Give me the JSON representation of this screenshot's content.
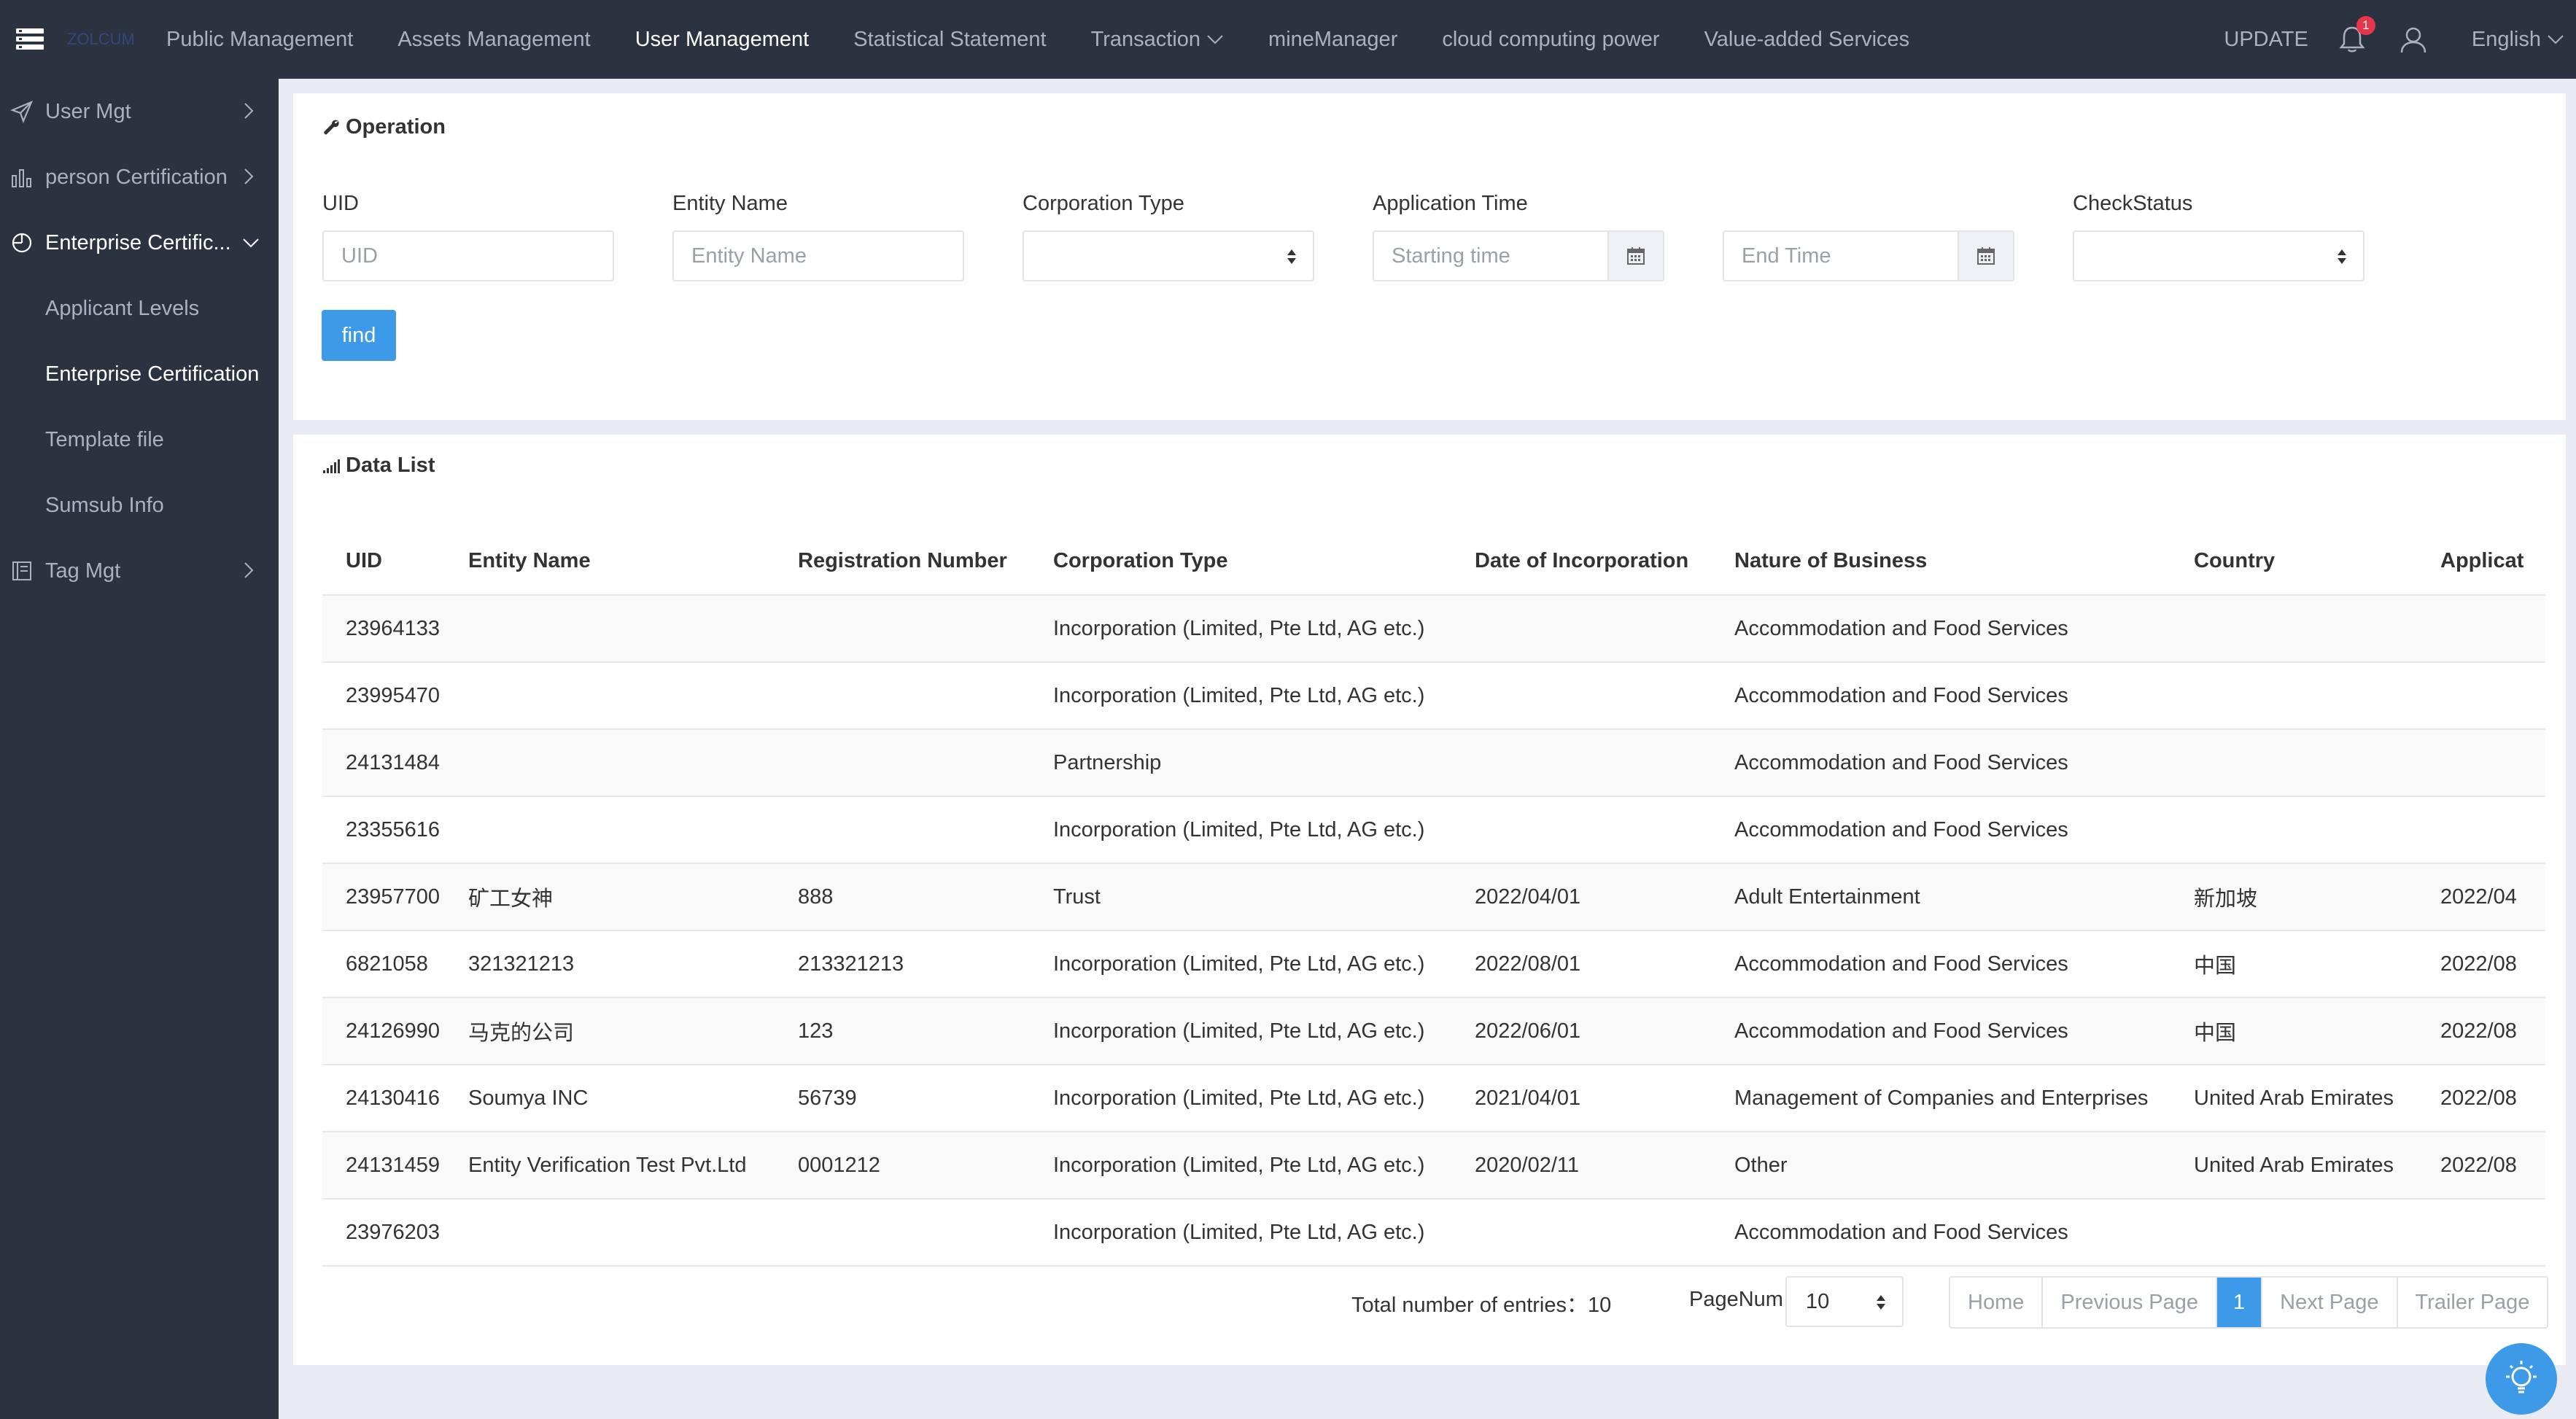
{
  "topbar": {
    "logo_text": "ZOLCUM",
    "nav": [
      {
        "label": "Public Management"
      },
      {
        "label": "Assets Management"
      },
      {
        "label": "User Management",
        "active": true
      },
      {
        "label": "Statistical Statement"
      },
      {
        "label": "Transaction",
        "dropdown": true
      },
      {
        "label": "mineManager"
      },
      {
        "label": "cloud computing power"
      },
      {
        "label": "Value-added Services"
      }
    ],
    "update_label": "UPDATE",
    "notification_count": "1",
    "language": "English"
  },
  "sidebar": {
    "items": [
      {
        "label": "User Mgt",
        "icon": "send-icon"
      },
      {
        "label": "person Certification",
        "icon": "bar-chart-icon"
      },
      {
        "label": "Enterprise Certific...",
        "icon": "pie-chart-icon",
        "open": true
      },
      {
        "label": "Applicant Levels",
        "sub": true
      },
      {
        "label": "Enterprise Certification",
        "sub": true,
        "active": true
      },
      {
        "label": "Template file",
        "sub": true
      },
      {
        "label": "Sumsub Info",
        "sub": true
      },
      {
        "label": "Tag Mgt",
        "icon": "book-icon"
      }
    ]
  },
  "operation": {
    "title": "Operation",
    "uid_label": "UID",
    "uid_placeholder": "UID",
    "entity_label": "Entity Name",
    "entity_placeholder": "Entity Name",
    "corp_type_label": "Corporation Type",
    "app_time_label": "Application Time",
    "start_placeholder": "Starting time",
    "end_placeholder": "End Time",
    "check_status_label": "CheckStatus",
    "find_label": "find"
  },
  "data_list": {
    "title": "Data List",
    "columns": [
      "UID",
      "Entity Name",
      "Registration Number",
      "Corporation Type",
      "Date of Incorporation",
      "Nature of Business",
      "Country",
      "Applicat"
    ],
    "rows": [
      [
        "23964133",
        "",
        "",
        "Incorporation (Limited, Pte Ltd, AG etc.)",
        "",
        "Accommodation and Food Services",
        "",
        ""
      ],
      [
        "23995470",
        "",
        "",
        "Incorporation (Limited, Pte Ltd, AG etc.)",
        "",
        "Accommodation and Food Services",
        "",
        ""
      ],
      [
        "24131484",
        "",
        "",
        "Partnership",
        "",
        "Accommodation and Food Services",
        "",
        ""
      ],
      [
        "23355616",
        "",
        "",
        "Incorporation (Limited, Pte Ltd, AG etc.)",
        "",
        "Accommodation and Food Services",
        "",
        ""
      ],
      [
        "23957700",
        "矿工女神",
        "888",
        "Trust",
        "2022/04/01",
        "Adult Entertainment",
        "新加坡",
        "2022/04"
      ],
      [
        "6821058",
        "321321213",
        "213321213",
        "Incorporation (Limited, Pte Ltd, AG etc.)",
        "2022/08/01",
        "Accommodation and Food Services",
        "中国",
        "2022/08"
      ],
      [
        "24126990",
        "马克的公司",
        "123",
        "Incorporation (Limited, Pte Ltd, AG etc.)",
        "2022/06/01",
        "Accommodation and Food Services",
        "中国",
        "2022/08"
      ],
      [
        "24130416",
        "Soumya INC",
        "56739",
        "Incorporation (Limited, Pte Ltd, AG etc.)",
        "2021/04/01",
        "Management of Companies and Enterprises",
        "United Arab Emirates",
        "2022/08"
      ],
      [
        "24131459",
        "Entity Verification Test Pvt.Ltd",
        "0001212",
        "Incorporation (Limited, Pte Ltd, AG etc.)",
        "2020/02/11",
        "Other",
        "United Arab Emirates",
        "2022/08"
      ],
      [
        "23976203",
        "",
        "",
        "Incorporation (Limited, Pte Ltd, AG etc.)",
        "",
        "Accommodation and Food Services",
        "",
        ""
      ]
    ]
  },
  "pagination": {
    "total_label": "Total number of entries：",
    "total_value": "10",
    "pagenum_label": "PageNum",
    "pagenum_value": "10",
    "home": "Home",
    "prev": "Previous Page",
    "current": "1",
    "next": "Next Page",
    "last": "Trailer Page"
  },
  "colors": {
    "nav_bg": "#2b3240",
    "accent": "#3d9ae8",
    "badge": "#e6374a"
  }
}
